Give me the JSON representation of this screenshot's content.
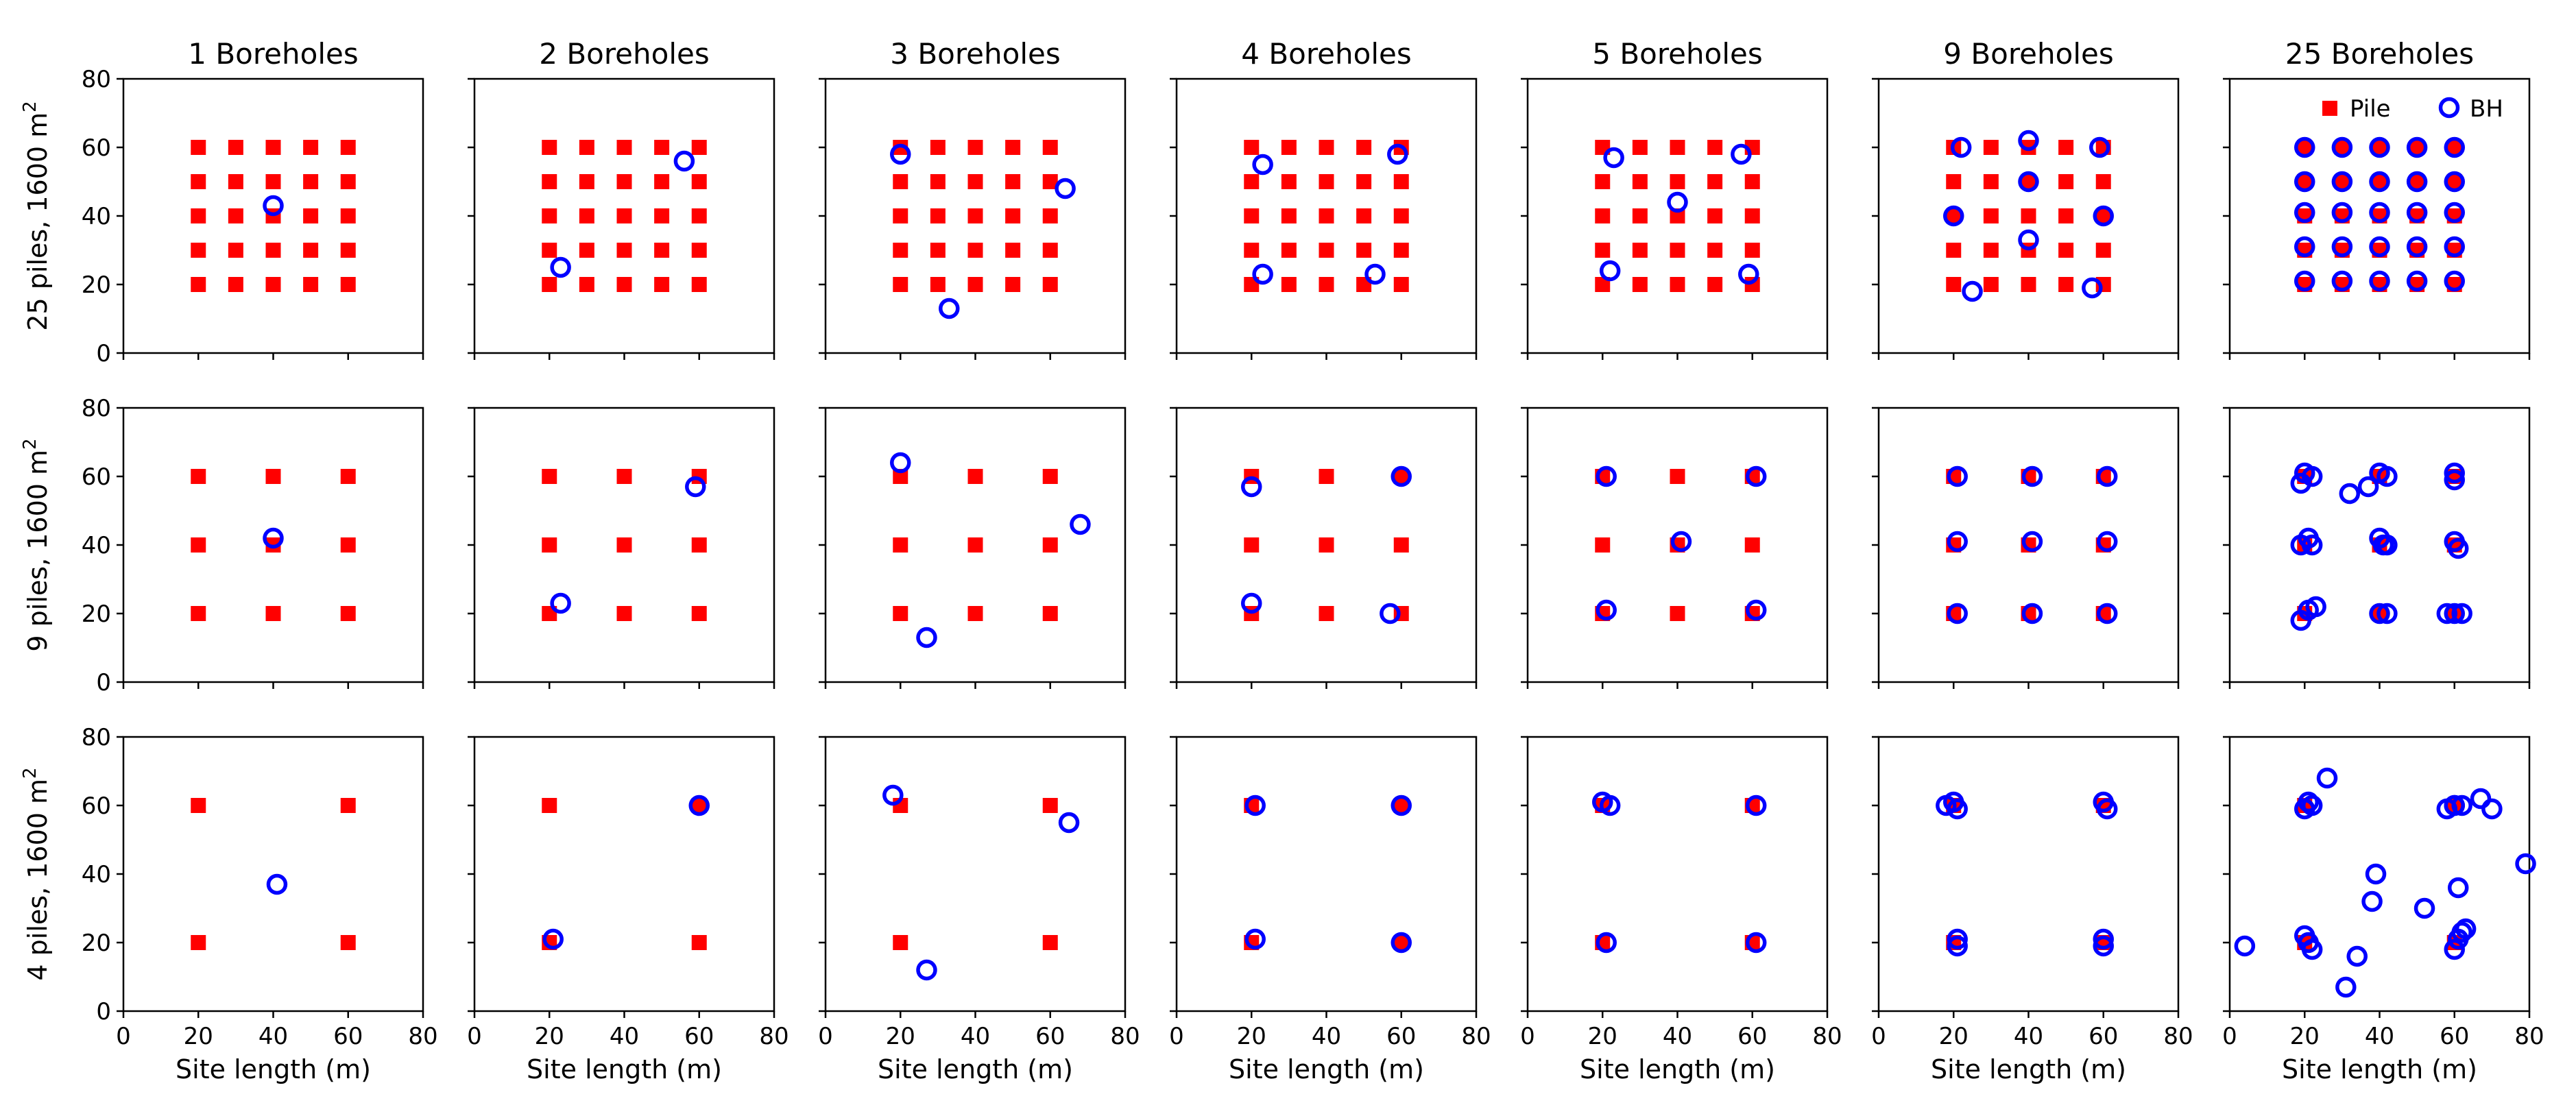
{
  "chart_data": {
    "type": "scatter",
    "column_titles": [
      "1 Boreholes",
      "2 Boreholes",
      "3 Boreholes",
      "4 Boreholes",
      "5 Boreholes",
      "9 Boreholes",
      "25 Boreholes"
    ],
    "row_ylabels": [
      "25 piles, 1600 m",
      "9 piles, 1600 m",
      "4 piles, 1600 m"
    ],
    "ylabel_superscript": "2",
    "xlabel": "Site length (m)",
    "xlim": [
      0,
      80
    ],
    "ylim": [
      0,
      80
    ],
    "xticks": [
      0,
      20,
      40,
      60,
      80
    ],
    "yticks": [
      0,
      20,
      40,
      60,
      80
    ],
    "colors": {
      "pile": "#ff0000",
      "borehole": "#0000ff"
    },
    "legend": {
      "location": "top-right",
      "panel": "row 1, col 7",
      "entries": [
        "Pile",
        "BH"
      ]
    },
    "piles": {
      "25 piles": [
        [
          20,
          20
        ],
        [
          30,
          20
        ],
        [
          40,
          20
        ],
        [
          50,
          20
        ],
        [
          60,
          20
        ],
        [
          20,
          30
        ],
        [
          30,
          30
        ],
        [
          40,
          30
        ],
        [
          50,
          30
        ],
        [
          60,
          30
        ],
        [
          20,
          40
        ],
        [
          30,
          40
        ],
        [
          40,
          40
        ],
        [
          50,
          40
        ],
        [
          60,
          40
        ],
        [
          20,
          50
        ],
        [
          30,
          50
        ],
        [
          40,
          50
        ],
        [
          50,
          50
        ],
        [
          60,
          50
        ],
        [
          20,
          60
        ],
        [
          30,
          60
        ],
        [
          40,
          60
        ],
        [
          50,
          60
        ],
        [
          60,
          60
        ]
      ],
      "9 piles": [
        [
          20,
          20
        ],
        [
          40,
          20
        ],
        [
          60,
          20
        ],
        [
          20,
          40
        ],
        [
          40,
          40
        ],
        [
          60,
          40
        ],
        [
          20,
          60
        ],
        [
          40,
          60
        ],
        [
          60,
          60
        ]
      ],
      "4 piles": [
        [
          20,
          20
        ],
        [
          60,
          20
        ],
        [
          20,
          60
        ],
        [
          60,
          60
        ]
      ]
    },
    "boreholes": [
      [
        [
          [
            40,
            43
          ]
        ],
        [
          [
            56,
            56
          ],
          [
            23,
            25
          ]
        ],
        [
          [
            20,
            58
          ],
          [
            64,
            48
          ],
          [
            33,
            13
          ]
        ],
        [
          [
            23,
            55
          ],
          [
            59,
            58
          ],
          [
            23,
            23
          ],
          [
            53,
            23
          ]
        ],
        [
          [
            23,
            57
          ],
          [
            57,
            58
          ],
          [
            40,
            44
          ],
          [
            22,
            24
          ],
          [
            59,
            23
          ]
        ],
        [
          [
            22,
            60
          ],
          [
            40,
            62
          ],
          [
            59,
            60
          ],
          [
            20,
            40
          ],
          [
            40,
            50
          ],
          [
            60,
            40
          ],
          [
            40,
            33
          ],
          [
            25,
            18
          ],
          [
            57,
            19
          ]
        ],
        [
          [
            20,
            60
          ],
          [
            30,
            60
          ],
          [
            40,
            60
          ],
          [
            50,
            60
          ],
          [
            60,
            60
          ],
          [
            20,
            50
          ],
          [
            30,
            50
          ],
          [
            40,
            50
          ],
          [
            50,
            50
          ],
          [
            60,
            50
          ],
          [
            20,
            41
          ],
          [
            30,
            41
          ],
          [
            40,
            41
          ],
          [
            50,
            41
          ],
          [
            60,
            41
          ],
          [
            20,
            31
          ],
          [
            30,
            31
          ],
          [
            40,
            31
          ],
          [
            50,
            31
          ],
          [
            60,
            31
          ],
          [
            20,
            21
          ],
          [
            30,
            21
          ],
          [
            40,
            21
          ],
          [
            50,
            21
          ],
          [
            60,
            21
          ]
        ]
      ],
      [
        [
          [
            40,
            42
          ]
        ],
        [
          [
            59,
            57
          ],
          [
            23,
            23
          ]
        ],
        [
          [
            20,
            64
          ],
          [
            68,
            46
          ],
          [
            27,
            13
          ]
        ],
        [
          [
            20,
            57
          ],
          [
            60,
            60
          ],
          [
            20,
            23
          ],
          [
            57,
            20
          ]
        ],
        [
          [
            21,
            60
          ],
          [
            61,
            60
          ],
          [
            41,
            41
          ],
          [
            21,
            21
          ],
          [
            61,
            21
          ]
        ],
        [
          [
            21,
            60
          ],
          [
            41,
            60
          ],
          [
            61,
            60
          ],
          [
            21,
            41
          ],
          [
            41,
            41
          ],
          [
            61,
            41
          ],
          [
            21,
            20
          ],
          [
            41,
            20
          ],
          [
            61,
            20
          ]
        ],
        [
          [
            19,
            58
          ],
          [
            20,
            61
          ],
          [
            22,
            60
          ],
          [
            40,
            61
          ],
          [
            42,
            60
          ],
          [
            60,
            61
          ],
          [
            60,
            59
          ],
          [
            32,
            55
          ],
          [
            37,
            57
          ],
          [
            19,
            40
          ],
          [
            21,
            42
          ],
          [
            22,
            40
          ],
          [
            40,
            42
          ],
          [
            41,
            40
          ],
          [
            42,
            40
          ],
          [
            60,
            41
          ],
          [
            61,
            39
          ],
          [
            19,
            18
          ],
          [
            21,
            21
          ],
          [
            23,
            22
          ],
          [
            40,
            20
          ],
          [
            42,
            20
          ],
          [
            58,
            20
          ],
          [
            60,
            20
          ],
          [
            62,
            20
          ]
        ]
      ],
      [
        [
          [
            41,
            37
          ]
        ],
        [
          [
            60,
            60
          ],
          [
            21,
            21
          ]
        ],
        [
          [
            18,
            63
          ],
          [
            65,
            55
          ],
          [
            27,
            12
          ]
        ],
        [
          [
            21,
            60
          ],
          [
            60,
            60
          ],
          [
            21,
            21
          ],
          [
            60,
            20
          ]
        ],
        [
          [
            20,
            61
          ],
          [
            22,
            60
          ],
          [
            61,
            60
          ],
          [
            21,
            20
          ],
          [
            61,
            20
          ]
        ],
        [
          [
            18,
            60
          ],
          [
            20,
            61
          ],
          [
            21,
            59
          ],
          [
            60,
            61
          ],
          [
            61,
            59
          ],
          [
            21,
            21
          ],
          [
            21,
            19
          ],
          [
            60,
            21
          ],
          [
            60,
            19
          ]
        ],
        [
          [
            20,
            59
          ],
          [
            21,
            61
          ],
          [
            22,
            60
          ],
          [
            58,
            59
          ],
          [
            60,
            60
          ],
          [
            62,
            60
          ],
          [
            67,
            62
          ],
          [
            70,
            59
          ],
          [
            26,
            68
          ],
          [
            79,
            43
          ],
          [
            39,
            40
          ],
          [
            61,
            36
          ],
          [
            38,
            32
          ],
          [
            52,
            30
          ],
          [
            4,
            19
          ],
          [
            20,
            22
          ],
          [
            21,
            20
          ],
          [
            22,
            18
          ],
          [
            34,
            16
          ],
          [
            60,
            18
          ],
          [
            61,
            21
          ],
          [
            62,
            23
          ],
          [
            63,
            24
          ],
          [
            31,
            7
          ],
          [
            60,
            60
          ]
        ]
      ]
    ]
  }
}
